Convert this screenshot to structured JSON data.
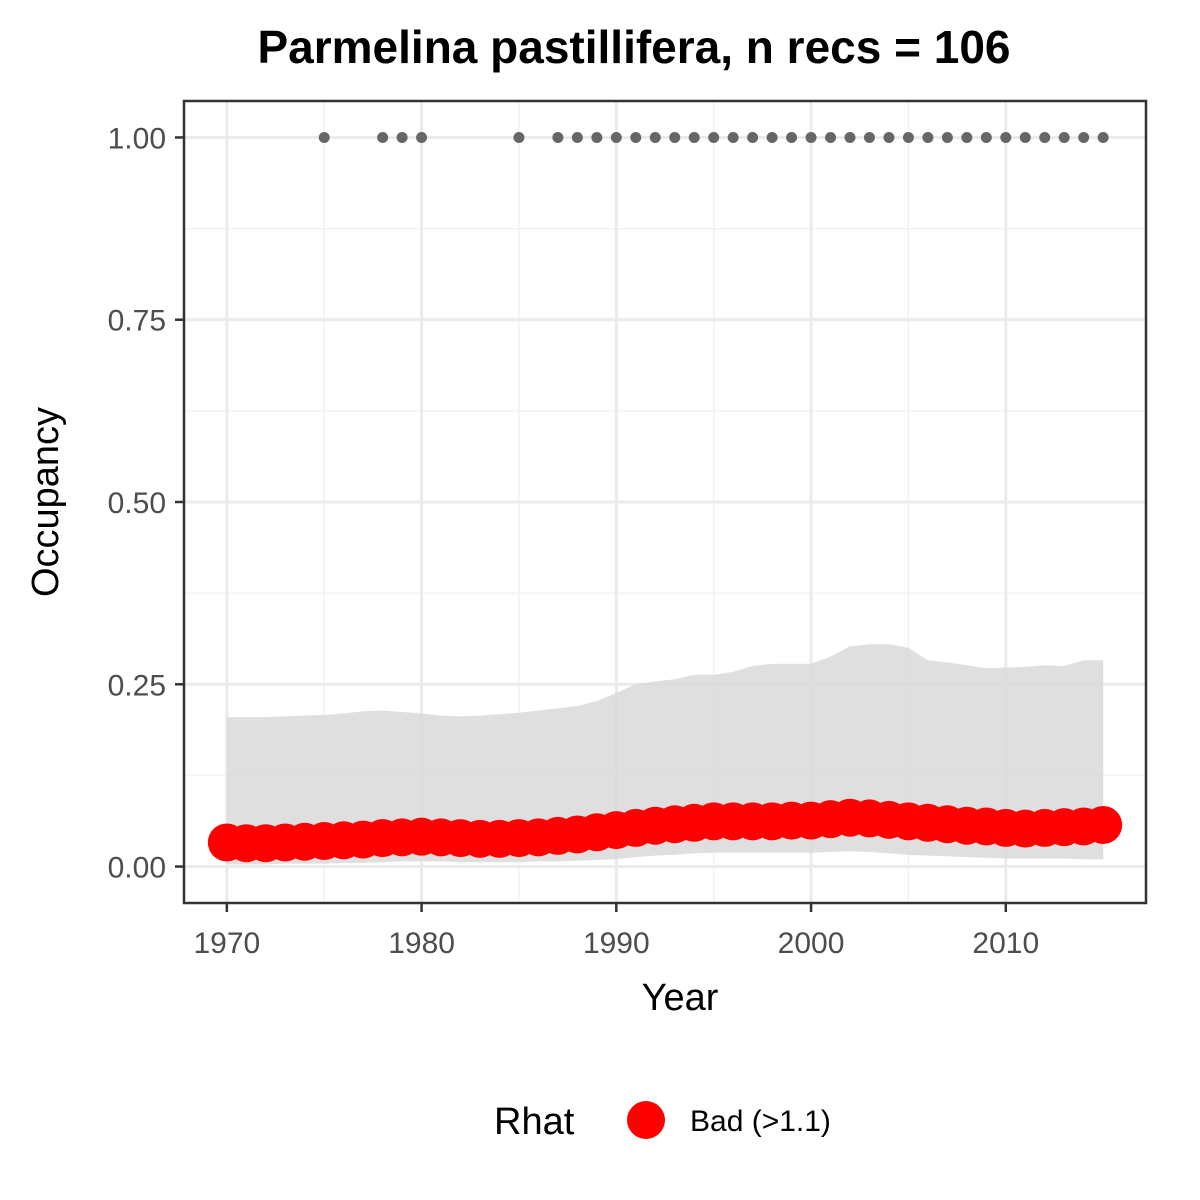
{
  "chart_data": {
    "type": "line",
    "title": "Parmelina pastillifera, n recs = 106",
    "xlabel": "Year",
    "ylabel": "Occupancy",
    "xlim": [
      1967.8,
      2017.2
    ],
    "ylim": [
      -0.05,
      1.05
    ],
    "x_ticks": [
      1970,
      1980,
      1990,
      2000,
      2010
    ],
    "x_tick_labels": [
      "1970",
      "1980",
      "1990",
      "2000",
      "2010"
    ],
    "y_ticks": [
      0.0,
      0.25,
      0.5,
      0.75,
      1.0
    ],
    "y_tick_labels": [
      "0.00",
      "0.25",
      "0.50",
      "0.75",
      "1.00"
    ],
    "grid": true,
    "years": [
      1970,
      1971,
      1972,
      1973,
      1974,
      1975,
      1976,
      1977,
      1978,
      1979,
      1980,
      1981,
      1982,
      1983,
      1984,
      1985,
      1986,
      1987,
      1988,
      1989,
      1990,
      1991,
      1992,
      1993,
      1994,
      1995,
      1996,
      1997,
      1998,
      1999,
      2000,
      2001,
      2002,
      2003,
      2004,
      2005,
      2006,
      2007,
      2008,
      2009,
      2010,
      2011,
      2012,
      2013,
      2014,
      2015
    ],
    "mean": [
      0.033,
      0.032,
      0.032,
      0.033,
      0.034,
      0.035,
      0.036,
      0.037,
      0.039,
      0.04,
      0.041,
      0.04,
      0.039,
      0.038,
      0.038,
      0.039,
      0.04,
      0.042,
      0.044,
      0.047,
      0.05,
      0.053,
      0.056,
      0.058,
      0.06,
      0.062,
      0.062,
      0.062,
      0.062,
      0.063,
      0.063,
      0.065,
      0.067,
      0.066,
      0.064,
      0.062,
      0.06,
      0.058,
      0.056,
      0.055,
      0.053,
      0.052,
      0.053,
      0.054,
      0.055,
      0.057
    ],
    "upper": [
      0.205,
      0.205,
      0.205,
      0.206,
      0.207,
      0.208,
      0.21,
      0.213,
      0.214,
      0.212,
      0.21,
      0.207,
      0.206,
      0.207,
      0.209,
      0.211,
      0.214,
      0.217,
      0.22,
      0.227,
      0.238,
      0.25,
      0.254,
      0.257,
      0.263,
      0.263,
      0.267,
      0.275,
      0.278,
      0.278,
      0.278,
      0.288,
      0.302,
      0.305,
      0.305,
      0.3,
      0.283,
      0.28,
      0.276,
      0.272,
      0.273,
      0.274,
      0.276,
      0.275,
      0.283,
      0.283
    ],
    "lower": [
      0.003,
      0.003,
      0.003,
      0.004,
      0.004,
      0.004,
      0.005,
      0.005,
      0.006,
      0.007,
      0.007,
      0.007,
      0.006,
      0.006,
      0.006,
      0.006,
      0.007,
      0.007,
      0.008,
      0.009,
      0.01,
      0.013,
      0.015,
      0.016,
      0.018,
      0.019,
      0.019,
      0.019,
      0.019,
      0.019,
      0.019,
      0.02,
      0.021,
      0.02,
      0.018,
      0.016,
      0.015,
      0.014,
      0.013,
      0.012,
      0.011,
      0.011,
      0.011,
      0.011,
      0.01,
      0.01
    ],
    "detections": {
      "years": [
        1975,
        1978,
        1979,
        1980,
        1985,
        1987,
        1988,
        1989,
        1990,
        1991,
        1992,
        1993,
        1994,
        1995,
        1996,
        1997,
        1998,
        1999,
        2000,
        2001,
        2002,
        2003,
        2004,
        2005,
        2006,
        2007,
        2008,
        2009,
        2010,
        2011,
        2012,
        2013,
        2014,
        2015
      ],
      "value": 1.0
    },
    "legend": {
      "title": "Rhat",
      "placement": "bottom",
      "entries": [
        {
          "label": "Bad (>1.1)",
          "color": "#ff0000"
        }
      ]
    },
    "colors": {
      "mean_point": "#ff0000",
      "ribbon": "#d9d9d9",
      "detection_point": "#666666",
      "grid_major": "#ebebeb",
      "grid_minor": "#f2f2f2",
      "panel_border": "#333333"
    }
  }
}
